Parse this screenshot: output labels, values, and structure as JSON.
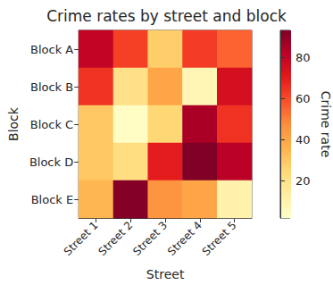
{
  "chart_data": {
    "type": "heatmap",
    "title": "Crime rates by street and block",
    "xlabel": "Street",
    "ylabel": "Block",
    "x": [
      "Street 1",
      "Street 2",
      "Street 3",
      "Street 4",
      "Street 5"
    ],
    "y": [
      "Block A",
      "Block B",
      "Block C",
      "Block D",
      "Block E"
    ],
    "values": [
      [
        80,
        62,
        28,
        63,
        55
      ],
      [
        65,
        20,
        40,
        8,
        75
      ],
      [
        30,
        4,
        25,
        85,
        65
      ],
      [
        30,
        22,
        70,
        93,
        82
      ],
      [
        35,
        92,
        45,
        40,
        10
      ]
    ],
    "colorbar": {
      "label": "Crime rate",
      "range": [
        2,
        93
      ],
      "ticks": [
        20,
        40,
        60,
        80
      ]
    }
  }
}
